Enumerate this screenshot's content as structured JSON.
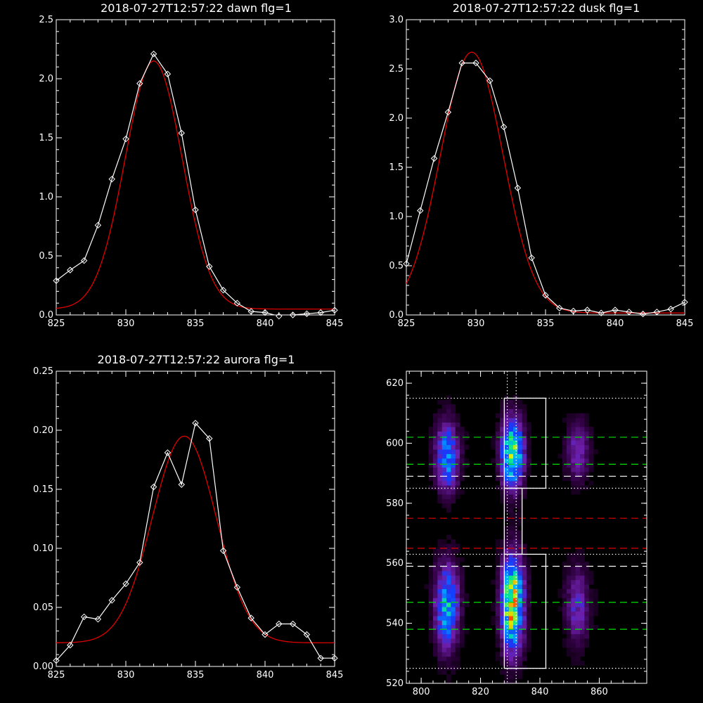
{
  "chart_data": [
    {
      "type": "line",
      "title": "2018-07-27T12:57:22 dawn flg=1",
      "xlim": [
        825,
        845
      ],
      "ylim": [
        0,
        2.5
      ],
      "xticks": [
        "825",
        "830",
        "835",
        "840",
        "845"
      ],
      "yticks": [
        "0.0",
        "0.5",
        "1.0",
        "1.5",
        "2.0",
        "2.5"
      ],
      "series": [
        {
          "kind": "data",
          "color": "#ffffff",
          "marker": "diamond",
          "x": [
            825,
            826,
            827,
            828,
            829,
            830,
            831,
            832,
            833,
            834,
            835,
            836,
            837,
            838,
            839,
            840,
            841,
            842,
            843,
            844,
            845
          ],
          "y": [
            0.29,
            0.38,
            0.46,
            0.76,
            1.15,
            1.49,
            1.96,
            2.21,
            2.04,
            1.54,
            0.89,
            0.41,
            0.21,
            0.1,
            0.03,
            0.02,
            -0.01,
            0.0,
            0.01,
            0.02,
            0.04
          ]
        },
        {
          "kind": "gaussian-fit",
          "color": "#e00000",
          "amplitude": 2.1,
          "center": 832.0,
          "sigma": 2.05,
          "offset": 0.05
        }
      ]
    },
    {
      "type": "line",
      "title": "2018-07-27T12:57:22 dusk flg=1",
      "xlim": [
        825,
        845
      ],
      "ylim": [
        0,
        3.0
      ],
      "xticks": [
        "825",
        "830",
        "835",
        "840",
        "845"
      ],
      "yticks": [
        "0.0",
        "0.5",
        "1.0",
        "1.5",
        "2.0",
        "2.5",
        "3.0"
      ],
      "series": [
        {
          "kind": "data",
          "color": "#ffffff",
          "marker": "diamond",
          "x": [
            825,
            826,
            827,
            828,
            829,
            830,
            831,
            832,
            833,
            834,
            835,
            836,
            837,
            838,
            839,
            840,
            841,
            842,
            843,
            844,
            845
          ],
          "y": [
            0.52,
            1.06,
            1.59,
            2.06,
            2.56,
            2.56,
            2.38,
            1.91,
            1.29,
            0.58,
            0.2,
            0.07,
            0.04,
            0.05,
            0.02,
            0.05,
            0.03,
            0.01,
            0.03,
            0.06,
            0.13
          ]
        },
        {
          "kind": "gaussian-fit",
          "color": "#e00000",
          "amplitude": 2.65,
          "center": 829.7,
          "sigma": 2.25,
          "offset": 0.02
        }
      ]
    },
    {
      "type": "line",
      "title": "2018-07-27T12:57:22 aurora flg=1",
      "xlim": [
        825,
        845
      ],
      "ylim": [
        0,
        0.25
      ],
      "xticks": [
        "825",
        "830",
        "835",
        "840",
        "845"
      ],
      "yticks": [
        "0.00",
        "0.05",
        "0.10",
        "0.15",
        "0.20",
        "0.25"
      ],
      "series": [
        {
          "kind": "data",
          "color": "#ffffff",
          "marker": "diamond",
          "x": [
            825,
            826,
            827,
            828,
            829,
            830,
            831,
            832,
            833,
            834,
            835,
            836,
            837,
            838,
            839,
            840,
            841,
            842,
            843,
            844,
            845
          ],
          "y": [
            0.005,
            0.018,
            0.042,
            0.04,
            0.056,
            0.07,
            0.088,
            0.152,
            0.181,
            0.154,
            0.206,
            0.193,
            0.098,
            0.067,
            0.041,
            0.027,
            0.036,
            0.036,
            0.027,
            0.007,
            0.007
          ]
        },
        {
          "kind": "gaussian-fit",
          "color": "#e00000",
          "amplitude": 0.175,
          "center": 834.2,
          "sigma": 2.3,
          "offset": 0.02
        }
      ]
    },
    {
      "type": "heatmap",
      "xlim": [
        795,
        876
      ],
      "ylim": [
        520,
        624
      ],
      "xticks": [
        "800",
        "820",
        "840",
        "860"
      ],
      "yticks": [
        "520",
        "540",
        "560",
        "580",
        "600",
        "620"
      ],
      "colormap": "rainbow",
      "blobs": [
        {
          "x": 808,
          "y": 595,
          "sx": 2.8,
          "sy": 8,
          "amp": 0.55
        },
        {
          "x": 830,
          "y": 596,
          "sx": 2.6,
          "sy": 8,
          "amp": 0.85
        },
        {
          "x": 852,
          "y": 597,
          "sx": 2.8,
          "sy": 7,
          "amp": 0.3
        },
        {
          "x": 808,
          "y": 545,
          "sx": 2.8,
          "sy": 10,
          "amp": 0.62
        },
        {
          "x": 830,
          "y": 546,
          "sx": 2.6,
          "sy": 11,
          "amp": 0.95
        },
        {
          "x": 852,
          "y": 545,
          "sx": 2.8,
          "sy": 9,
          "amp": 0.32
        }
      ],
      "overlays": {
        "boxes": [
          {
            "x0": 828,
            "x1": 842,
            "y0": 585,
            "y1": 615
          },
          {
            "x0": 828,
            "x1": 842,
            "y0": 525,
            "y1": 563
          },
          {
            "x0": 828,
            "x1": 834,
            "y0": 563,
            "y1": 585
          }
        ],
        "hlines": [
          {
            "y": 615,
            "color": "#ffffff",
            "style": "dotted"
          },
          {
            "y": 585,
            "color": "#ffffff",
            "style": "dotted"
          },
          {
            "y": 563,
            "color": "#ffffff",
            "style": "dotted"
          },
          {
            "y": 525,
            "color": "#ffffff",
            "style": "dotted"
          },
          {
            "y": 602,
            "color": "#00e000",
            "style": "dashed"
          },
          {
            "y": 593,
            "color": "#00e000",
            "style": "dashed"
          },
          {
            "y": 547,
            "color": "#00e000",
            "style": "dashed"
          },
          {
            "y": 538,
            "color": "#00e000",
            "style": "dashed"
          },
          {
            "y": 589,
            "color": "#ffffff",
            "style": "dashed"
          },
          {
            "y": 559,
            "color": "#ffffff",
            "style": "dashed"
          },
          {
            "y": 575,
            "color": "#e00000",
            "style": "dashed"
          },
          {
            "y": 565,
            "color": "#e00000",
            "style": "dashed"
          }
        ],
        "vlines": [
          {
            "x": 829,
            "color": "#ffffff",
            "style": "dotted"
          },
          {
            "x": 832,
            "color": "#ffffff",
            "style": "dotted"
          }
        ]
      }
    }
  ]
}
